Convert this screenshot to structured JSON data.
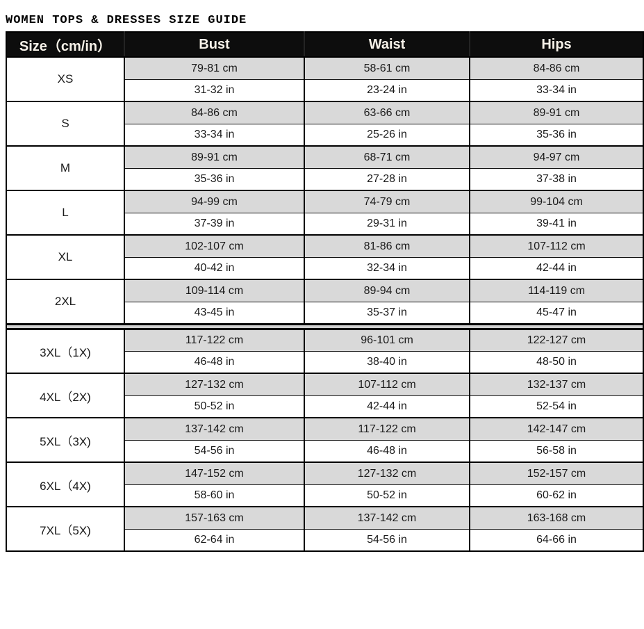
{
  "page": {
    "title": "WOMEN TOPS & DRESSES SIZE GUIDE"
  },
  "table": {
    "headers": {
      "size": "Size（cm/in）",
      "bust": "Bust",
      "waist": "Waist",
      "hips": "Hips"
    },
    "divider_after_index": 5,
    "rows": [
      {
        "size": "XS",
        "bust_cm": "79-81 cm",
        "bust_in": "31-32 in",
        "waist_cm": "58-61 cm",
        "waist_in": "23-24 in",
        "hips_cm": "84-86 cm",
        "hips_in": "33-34 in"
      },
      {
        "size": "S",
        "bust_cm": "84-86 cm",
        "bust_in": "33-34 in",
        "waist_cm": "63-66 cm",
        "waist_in": "25-26 in",
        "hips_cm": "89-91 cm",
        "hips_in": "35-36 in"
      },
      {
        "size": "M",
        "bust_cm": "89-91 cm",
        "bust_in": "35-36 in",
        "waist_cm": "68-71 cm",
        "waist_in": "27-28 in",
        "hips_cm": "94-97 cm",
        "hips_in": "37-38 in"
      },
      {
        "size": "L",
        "bust_cm": "94-99 cm",
        "bust_in": "37-39 in",
        "waist_cm": "74-79 cm",
        "waist_in": "29-31 in",
        "hips_cm": "99-104 cm",
        "hips_in": "39-41 in"
      },
      {
        "size": "XL",
        "bust_cm": "102-107 cm",
        "bust_in": "40-42 in",
        "waist_cm": "81-86 cm",
        "waist_in": "32-34 in",
        "hips_cm": "107-112 cm",
        "hips_in": "42-44 in"
      },
      {
        "size": "2XL",
        "bust_cm": "109-114 cm",
        "bust_in": "43-45 in",
        "waist_cm": "89-94 cm",
        "waist_in": "35-37 in",
        "hips_cm": "114-119 cm",
        "hips_in": "45-47 in"
      },
      {
        "size": "3XL（1X)",
        "bust_cm": "117-122 cm",
        "bust_in": "46-48 in",
        "waist_cm": "96-101 cm",
        "waist_in": "38-40 in",
        "hips_cm": "122-127 cm",
        "hips_in": "48-50 in"
      },
      {
        "size": "4XL（2X)",
        "bust_cm": "127-132 cm",
        "bust_in": "50-52 in",
        "waist_cm": "107-112 cm",
        "waist_in": "42-44 in",
        "hips_cm": "132-137 cm",
        "hips_in": "52-54 in"
      },
      {
        "size": "5XL（3X)",
        "bust_cm": "137-142 cm",
        "bust_in": "54-56 in",
        "waist_cm": "117-122 cm",
        "waist_in": "46-48 in",
        "hips_cm": "142-147 cm",
        "hips_in": "56-58 in"
      },
      {
        "size": "6XL（4X)",
        "bust_cm": "147-152 cm",
        "bust_in": "58-60 in",
        "waist_cm": "127-132 cm",
        "waist_in": "50-52 in",
        "hips_cm": "152-157 cm",
        "hips_in": "60-62 in"
      },
      {
        "size": "7XL（5X)",
        "bust_cm": "157-163 cm",
        "bust_in": "62-64 in",
        "waist_cm": "137-142 cm",
        "waist_in": "54-56 in",
        "hips_cm": "163-168 cm",
        "hips_in": "64-66 in"
      }
    ],
    "colors": {
      "header_bg": "#0d0d0d",
      "header_text": "#f7f2e9",
      "cm_row_bg": "#d9d9d9",
      "in_row_bg": "#ffffff",
      "border": "#000000",
      "divider_band": "#cfcfcf",
      "text": "#1a1a1a"
    }
  }
}
